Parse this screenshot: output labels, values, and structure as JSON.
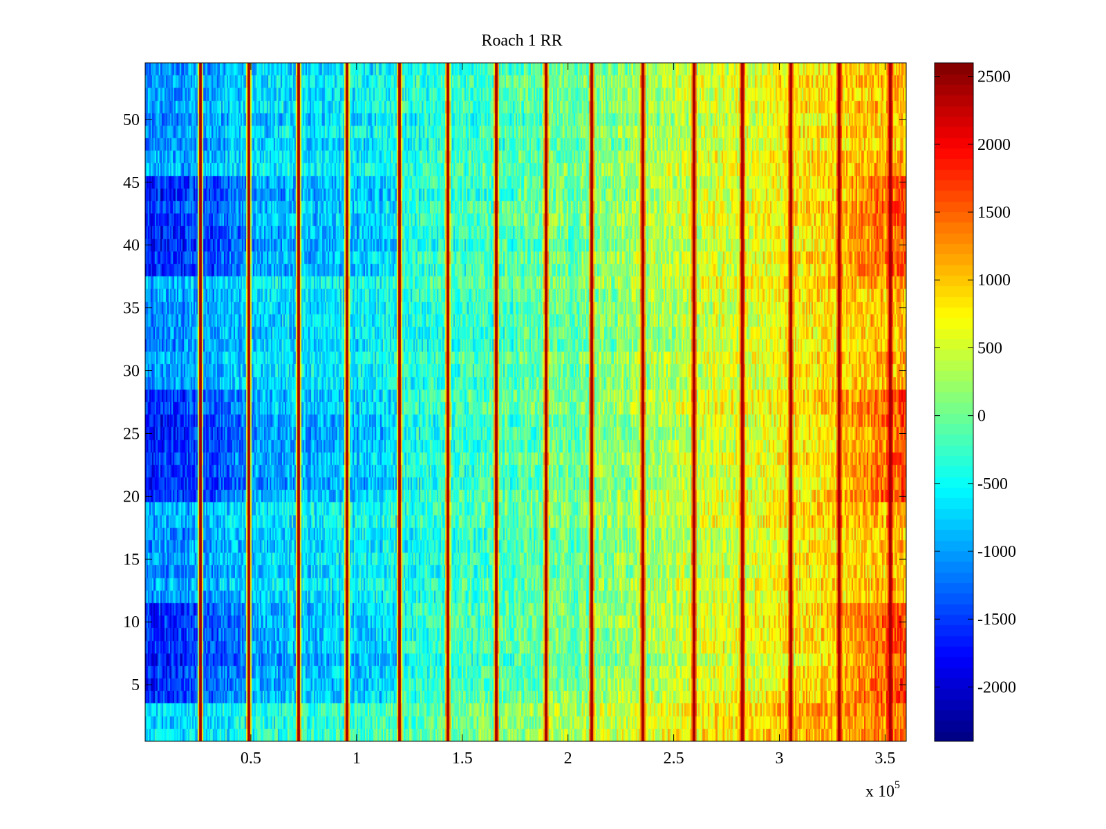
{
  "chart_data": {
    "type": "heatmap",
    "title": "Roach 1 RR",
    "xlabel": "",
    "ylabel": "",
    "x_multiplier_label": "x 10",
    "x_multiplier_exponent": "5",
    "xlim": [
      0,
      3.6
    ],
    "ylim": [
      0.5,
      54.5
    ],
    "x_ticks": [
      0.5,
      1,
      1.5,
      2,
      2.5,
      3,
      3.5
    ],
    "x_tick_labels": [
      "0.5",
      "1",
      "1.5",
      "2",
      "2.5",
      "3",
      "3.5"
    ],
    "y_ticks": [
      5,
      10,
      15,
      20,
      25,
      30,
      35,
      40,
      45,
      50
    ],
    "y_tick_labels": [
      "5",
      "10",
      "15",
      "20",
      "25",
      "30",
      "35",
      "40",
      "45",
      "50"
    ],
    "colormap": "jet",
    "clim": [
      -2400,
      2600
    ],
    "colorbar_ticks": [
      2500,
      2000,
      1500,
      1000,
      500,
      0,
      -500,
      -1000,
      -1500,
      -2000
    ],
    "colorbar_tick_labels": [
      "2500",
      "2000",
      "1500",
      "1000",
      "500",
      "0",
      "-500",
      "-1000",
      "-1500",
      "-2000"
    ],
    "rows": 54,
    "trend_x": [
      0,
      0.3,
      0.5,
      1.0,
      1.5,
      2.0,
      2.5,
      3.0,
      3.3,
      3.6
    ],
    "trend_value": [
      -1050,
      -950,
      -700,
      -550,
      -250,
      0,
      350,
      700,
      900,
      1050
    ],
    "dark_bands_rows": [
      [
        4,
        11
      ],
      [
        20,
        28
      ],
      [
        38,
        45
      ]
    ],
    "dark_band_extra": -650,
    "dark_band_extra_right": 550,
    "bottom_rows_warm_shift": 300,
    "stripe_x": [
      0.26,
      0.49,
      0.72,
      0.95,
      1.2,
      1.43,
      1.66,
      1.89,
      2.11,
      2.35,
      2.59,
      2.82,
      3.05,
      3.28,
      3.52
    ],
    "stripe_value": 2400,
    "noise_amplitude": 420
  },
  "colors": {
    "background": "#ffffff",
    "axis": "#000000"
  }
}
